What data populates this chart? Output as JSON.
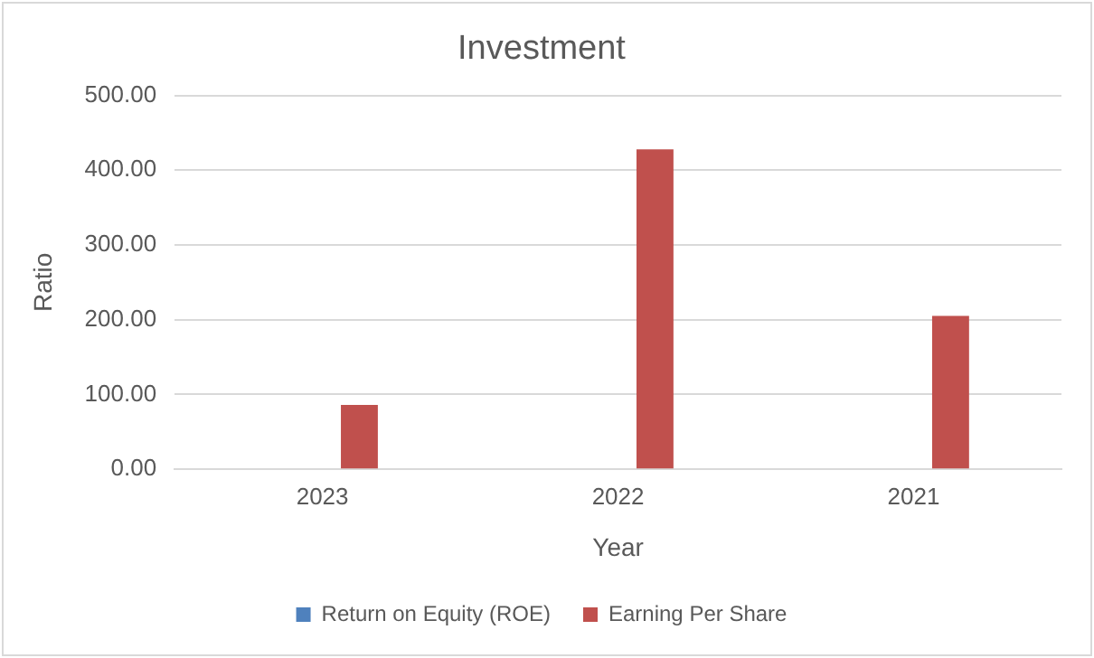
{
  "chart_data": {
    "type": "bar",
    "title": "Investment",
    "xlabel": "Year",
    "ylabel": "Ratio",
    "categories": [
      "2023",
      "2022",
      "2021"
    ],
    "series": [
      {
        "name": "Return on Equity (ROE)",
        "color": "#4f81bd",
        "values": [
          0,
          0,
          0
        ]
      },
      {
        "name": "Earning Per Share",
        "color": "#c0504d",
        "values": [
          86,
          428,
          205
        ]
      }
    ],
    "ylim": [
      0,
      500
    ],
    "yticks": [
      {
        "value": 0,
        "label": "0.00"
      },
      {
        "value": 100,
        "label": "100.00"
      },
      {
        "value": 200,
        "label": "200.00"
      },
      {
        "value": 300,
        "label": "300.00"
      },
      {
        "value": 400,
        "label": "400.00"
      },
      {
        "value": 500,
        "label": "500.00"
      }
    ],
    "grid": "y",
    "legend": "bottom"
  }
}
